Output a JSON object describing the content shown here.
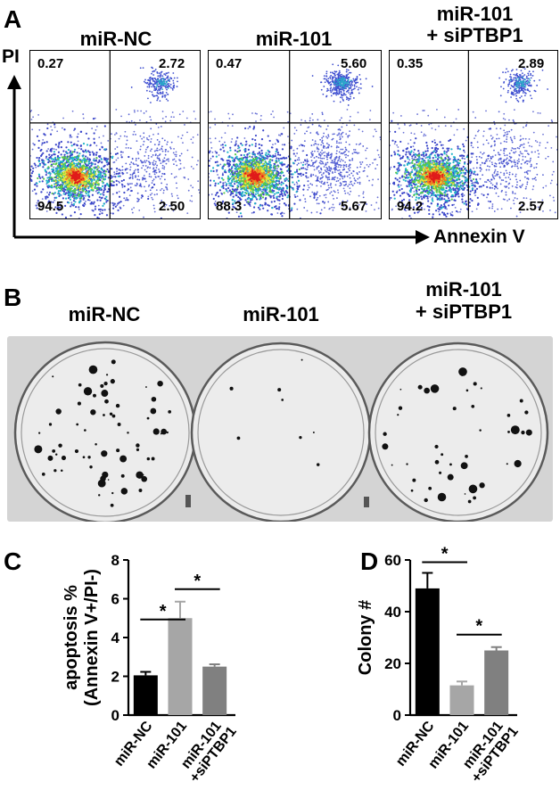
{
  "panel_a": {
    "letter": "A",
    "y_axis_label": "PI",
    "x_axis_label": "Annexin V",
    "plots": [
      {
        "title_line1": "miR-NC",
        "title_line2": "",
        "ul": "0.27",
        "ur": "2.72",
        "ll": "94.5",
        "lr": "2.50"
      },
      {
        "title_line1": "miR-101",
        "title_line2": "",
        "ul": "0.47",
        "ur": "5.60",
        "ll": "88.3",
        "lr": "5.67"
      },
      {
        "title_line1": "miR-101",
        "title_line2": "+ siPTBP1",
        "ul": "0.35",
        "ur": "2.89",
        "ll": "94.2",
        "lr": "2.57"
      }
    ]
  },
  "panel_b": {
    "letter": "B",
    "columns": [
      {
        "line1": "miR-NC",
        "line2": ""
      },
      {
        "line1": "miR-101",
        "line2": ""
      },
      {
        "line1": "miR-101",
        "line2": "+ siPTBP1"
      }
    ]
  },
  "panel_c": {
    "letter": "C",
    "significance_marks": [
      "*",
      "*"
    ]
  },
  "panel_d": {
    "letter": "D",
    "significance_marks": [
      "*",
      "*"
    ]
  },
  "chart_data": [
    {
      "type": "bar",
      "panel": "C",
      "categories": [
        "miR-NC",
        "miR-101",
        "miR-101\n+siPTBP1"
      ],
      "category_lines": [
        [
          "miR-NC"
        ],
        [
          "miR-101"
        ],
        [
          "miR-101",
          "+siPTBP1"
        ]
      ],
      "values": [
        2.05,
        5.0,
        2.5
      ],
      "errors": [
        0.18,
        0.85,
        0.12
      ],
      "colors": [
        "#000000",
        "#a6a6a6",
        "#808080"
      ],
      "ylabel_line1": "apoptosis %",
      "ylabel_line2": "(Annexin V+/PI-)",
      "ylim": [
        0,
        8
      ],
      "yticks": [
        0,
        2,
        4,
        6,
        8
      ],
      "brackets": [
        {
          "from": 0,
          "to": 1,
          "label": "*"
        },
        {
          "from": 1,
          "to": 2,
          "label": "*"
        }
      ]
    },
    {
      "type": "bar",
      "panel": "D",
      "categories": [
        "miR-NC",
        "miR-101",
        "miR-101\n+siPTBP1"
      ],
      "category_lines": [
        [
          "miR-NC"
        ],
        [
          "miR-101"
        ],
        [
          "miR-101",
          "+siPTBP1"
        ]
      ],
      "values": [
        49,
        11.5,
        25
      ],
      "errors": [
        6,
        1.5,
        1.3
      ],
      "colors": [
        "#000000",
        "#a6a6a6",
        "#808080"
      ],
      "ylabel_line1": "Colony #",
      "ylabel_line2": "",
      "ylim": [
        0,
        60
      ],
      "yticks": [
        0,
        20,
        40,
        60
      ],
      "brackets": [
        {
          "from": 0,
          "to": 1,
          "label": "*"
        },
        {
          "from": 1,
          "to": 2,
          "label": "*"
        }
      ]
    }
  ]
}
